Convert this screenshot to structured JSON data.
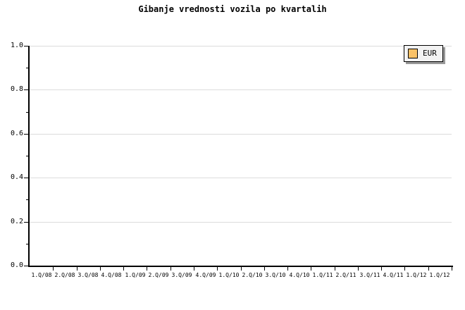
{
  "title": "Gibanje vrednosti vozila po kvartalih",
  "legend": {
    "label": "EUR",
    "swatch_color": "#FAC268"
  },
  "colors": {
    "background": "#ffffff",
    "axis": "#000000",
    "grid": "#dcdcdc",
    "text": "#000000",
    "legend_bg": "#f2f2f2",
    "legend_shadow": "#999999"
  },
  "y_axis": {
    "min": 0.0,
    "max": 1.0,
    "major_step": 0.2,
    "minor_step": 0.1,
    "tick_labels": [
      "0.0",
      "0.2",
      "0.4",
      "0.6",
      "0.8",
      "1.0"
    ]
  },
  "x_axis": {
    "tick_labels": [
      "1.Q/08",
      "2.Q/08",
      "3.Q/08",
      "4.Q/08",
      "1.Q/09",
      "2.Q/09",
      "3.Q/09",
      "4.Q/09",
      "1.Q/10",
      "2.Q/10",
      "3.Q/10",
      "4.Q/10",
      "1.Q/11",
      "2.Q/11",
      "3.Q/11",
      "4.Q/11",
      "1.Q/12",
      "1.Q/12"
    ]
  },
  "chart_data": {
    "type": "line",
    "title": "Gibanje vrednosti vozila po kvartalih",
    "categories": [
      "1.Q/08",
      "2.Q/08",
      "3.Q/08",
      "4.Q/08",
      "1.Q/09",
      "2.Q/09",
      "3.Q/09",
      "4.Q/09",
      "1.Q/10",
      "2.Q/10",
      "3.Q/10",
      "4.Q/10",
      "1.Q/11",
      "2.Q/11",
      "3.Q/11",
      "4.Q/11",
      "1.Q/12",
      "1.Q/12"
    ],
    "series": [
      {
        "name": "EUR",
        "color": "#FAC268",
        "values": []
      }
    ],
    "xlabel": "",
    "ylabel": "",
    "ylim": [
      0.0,
      1.0
    ],
    "grid": "horizontal-major",
    "legend_position": "top-right"
  }
}
